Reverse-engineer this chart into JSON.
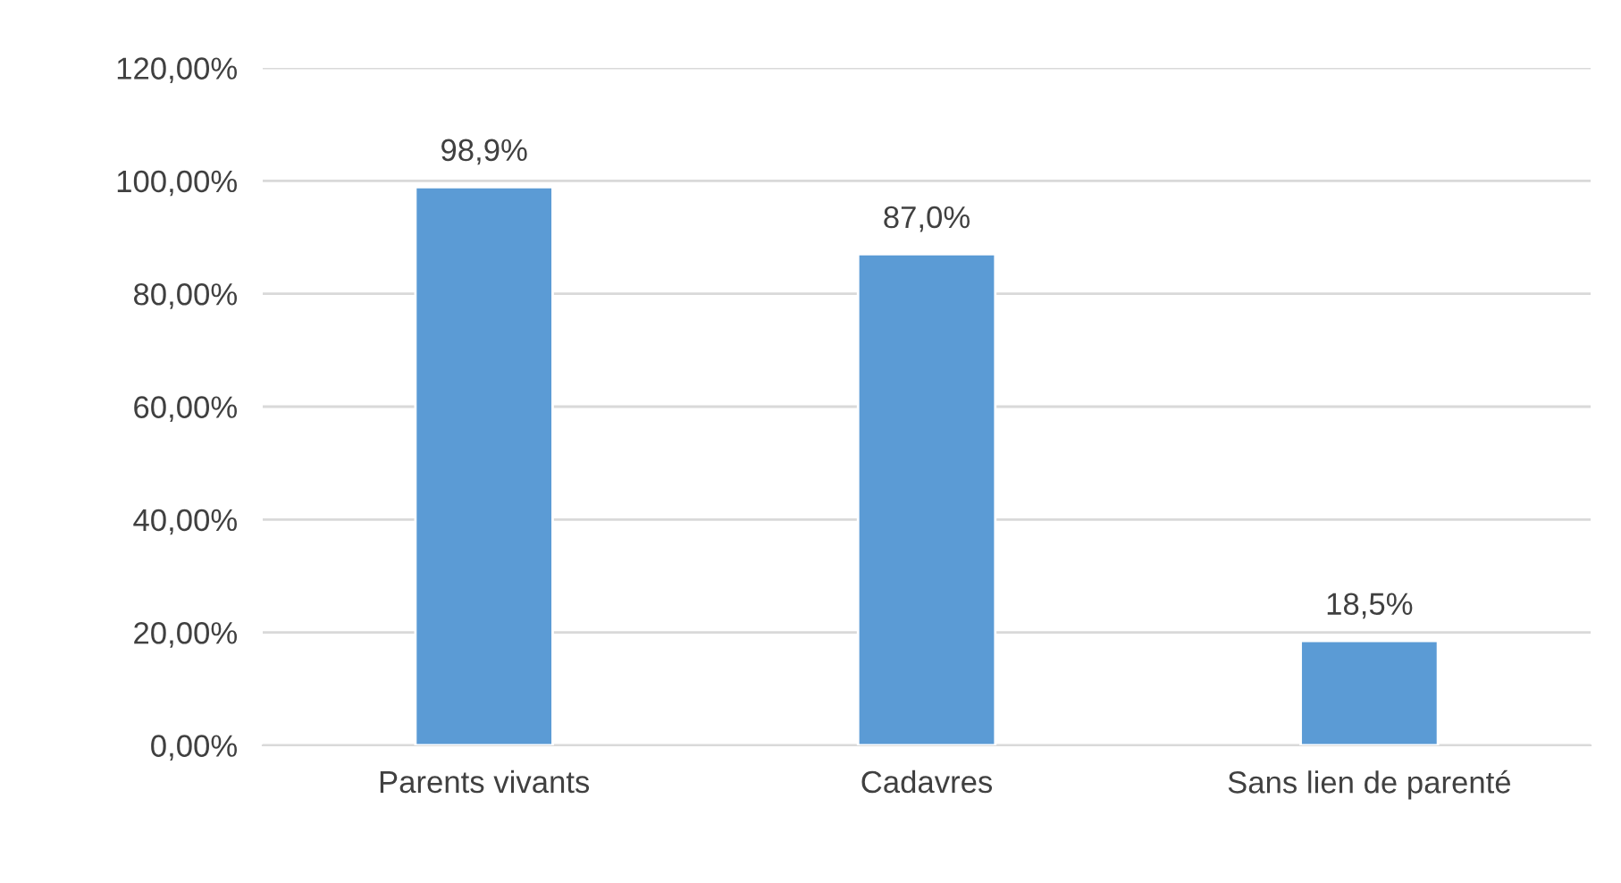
{
  "chart_data": {
    "type": "bar",
    "categories": [
      "Parents vivants",
      "Cadavres",
      "Sans lien de parenté"
    ],
    "values": [
      98.9,
      87.0,
      18.5
    ],
    "color": "#5b9bd5",
    "value_labels": [
      "98,9%",
      "87,0%",
      "18,5%"
    ],
    "ylim": [
      0,
      120
    ],
    "yticks": [
      {
        "value": 0,
        "label": "0,00%"
      },
      {
        "value": 20,
        "label": "20,00%"
      },
      {
        "value": 40,
        "label": "40,00%"
      },
      {
        "value": 60,
        "label": "60,00%"
      },
      {
        "value": 80,
        "label": "80,00%"
      },
      {
        "value": 100,
        "label": "100,00%"
      },
      {
        "value": 120,
        "label": "120,00%"
      }
    ],
    "grid": "y",
    "legend": false
  }
}
